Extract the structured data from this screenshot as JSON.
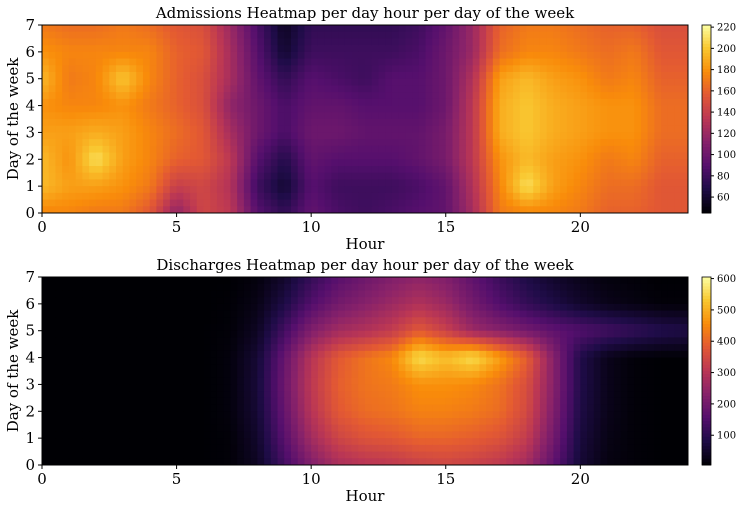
{
  "chart_data": [
    {
      "type": "heatmap",
      "title": "Admissions Heatmap per day hour per day of the week",
      "xlabel": "Hour",
      "ylabel": "Day of the week",
      "xlim": [
        0,
        24
      ],
      "ylim": [
        0,
        7
      ],
      "xticks": [
        "0",
        "5",
        "10",
        "15",
        "20"
      ],
      "xtick_values": [
        0,
        5,
        10,
        15,
        20
      ],
      "yticks": [
        "0",
        "1",
        "2",
        "3",
        "4",
        "5",
        "6",
        "7"
      ],
      "ytick_values": [
        0,
        1,
        2,
        3,
        4,
        5,
        6,
        7
      ],
      "colormap": "inferno",
      "colorbar": {
        "min": 45,
        "max": 222,
        "ticks": [
          "60",
          "80",
          "100",
          "120",
          "140",
          "160",
          "180",
          "200",
          "220"
        ],
        "tick_values": [
          60,
          80,
          100,
          120,
          140,
          160,
          180,
          200,
          220
        ]
      },
      "hours": [
        0,
        1,
        2,
        3,
        4,
        5,
        6,
        7,
        8,
        9,
        10,
        11,
        12,
        13,
        14,
        15,
        16,
        17,
        18,
        19,
        20,
        21,
        22,
        23,
        24
      ],
      "days": [
        0,
        1,
        2,
        3,
        4,
        5,
        6,
        7
      ],
      "values": [
        [
          175,
          175,
          170,
          170,
          155,
          115,
          145,
          135,
          90,
          75,
          95,
          85,
          80,
          85,
          90,
          95,
          125,
          170,
          175,
          175,
          170,
          160,
          160,
          155,
          155
        ],
        [
          195,
          185,
          185,
          180,
          170,
          140,
          145,
          130,
          80,
          60,
          90,
          80,
          80,
          80,
          85,
          95,
          130,
          175,
          210,
          185,
          175,
          165,
          165,
          155,
          155
        ],
        [
          195,
          180,
          210,
          185,
          175,
          160,
          155,
          135,
          90,
          70,
          95,
          90,
          90,
          90,
          95,
          105,
          135,
          180,
          195,
          185,
          180,
          170,
          175,
          160,
          160
        ],
        [
          185,
          185,
          190,
          185,
          175,
          165,
          155,
          125,
          100,
          85,
          100,
          100,
          95,
          95,
          95,
          105,
          135,
          190,
          200,
          190,
          185,
          180,
          180,
          165,
          165
        ],
        [
          180,
          175,
          175,
          180,
          170,
          160,
          150,
          115,
          100,
          85,
          95,
          95,
          90,
          90,
          90,
          100,
          135,
          190,
          200,
          190,
          185,
          180,
          180,
          165,
          165
        ],
        [
          195,
          170,
          175,
          200,
          175,
          160,
          150,
          125,
          95,
          75,
          90,
          85,
          80,
          90,
          90,
          100,
          130,
          185,
          195,
          185,
          180,
          170,
          175,
          160,
          160
        ],
        [
          180,
          175,
          175,
          175,
          175,
          160,
          155,
          125,
          90,
          60,
          80,
          80,
          80,
          80,
          85,
          100,
          120,
          165,
          175,
          175,
          170,
          165,
          170,
          155,
          155
        ],
        [
          170,
          165,
          165,
          170,
          165,
          155,
          150,
          120,
          85,
          55,
          75,
          75,
          75,
          75,
          80,
          95,
          120,
          160,
          170,
          170,
          165,
          160,
          160,
          150,
          150
        ]
      ]
    },
    {
      "type": "heatmap",
      "title": "Discharges Heatmap per day hour per day of the week",
      "xlabel": "Hour",
      "ylabel": "Day of the week",
      "xlim": [
        0,
        24
      ],
      "ylim": [
        0,
        7
      ],
      "xticks": [
        "0",
        "5",
        "10",
        "15",
        "20"
      ],
      "xtick_values": [
        0,
        5,
        10,
        15,
        20
      ],
      "yticks": [
        "0",
        "1",
        "2",
        "3",
        "4",
        "5",
        "6",
        "7"
      ],
      "ytick_values": [
        0,
        1,
        2,
        3,
        4,
        5,
        6,
        7
      ],
      "colormap": "inferno",
      "colorbar": {
        "min": 5,
        "max": 605,
        "ticks": [
          "100",
          "200",
          "300",
          "400",
          "500",
          "600"
        ],
        "tick_values": [
          100,
          200,
          300,
          400,
          500,
          600
        ]
      },
      "hours": [
        0,
        1,
        2,
        3,
        4,
        5,
        6,
        7,
        8,
        9,
        10,
        11,
        12,
        13,
        14,
        15,
        16,
        17,
        18,
        19,
        20,
        21,
        22,
        23,
        24
      ],
      "days": [
        0,
        1,
        2,
        3,
        4,
        5,
        6,
        7
      ],
      "values": [
        [
          5,
          5,
          5,
          5,
          5,
          5,
          5,
          10,
          40,
          130,
          220,
          280,
          300,
          310,
          330,
          340,
          330,
          310,
          270,
          170,
          60,
          20,
          10,
          5,
          5
        ],
        [
          5,
          5,
          5,
          5,
          5,
          5,
          5,
          10,
          50,
          160,
          270,
          340,
          370,
          380,
          400,
          400,
          390,
          370,
          320,
          200,
          70,
          25,
          10,
          5,
          5
        ],
        [
          5,
          5,
          5,
          5,
          5,
          5,
          5,
          15,
          60,
          180,
          300,
          380,
          410,
          420,
          440,
          440,
          430,
          410,
          350,
          220,
          80,
          30,
          10,
          5,
          5
        ],
        [
          5,
          5,
          5,
          5,
          5,
          5,
          5,
          15,
          65,
          190,
          310,
          390,
          420,
          430,
          460,
          460,
          450,
          420,
          360,
          230,
          85,
          30,
          10,
          5,
          5
        ],
        [
          5,
          5,
          5,
          5,
          5,
          5,
          5,
          15,
          60,
          180,
          300,
          380,
          420,
          450,
          560,
          520,
          560,
          480,
          390,
          230,
          85,
          30,
          10,
          5,
          5
        ],
        [
          5,
          5,
          5,
          5,
          5,
          5,
          5,
          10,
          40,
          130,
          220,
          270,
          290,
          320,
          380,
          330,
          260,
          230,
          200,
          170,
          150,
          130,
          110,
          90,
          80
        ],
        [
          5,
          5,
          5,
          5,
          5,
          5,
          5,
          8,
          25,
          80,
          150,
          200,
          230,
          260,
          290,
          260,
          200,
          150,
          110,
          80,
          50,
          30,
          20,
          10,
          10
        ],
        [
          5,
          5,
          5,
          5,
          5,
          5,
          5,
          5,
          15,
          50,
          110,
          160,
          190,
          220,
          240,
          220,
          170,
          120,
          80,
          50,
          30,
          15,
          10,
          5,
          5
        ]
      ]
    }
  ]
}
